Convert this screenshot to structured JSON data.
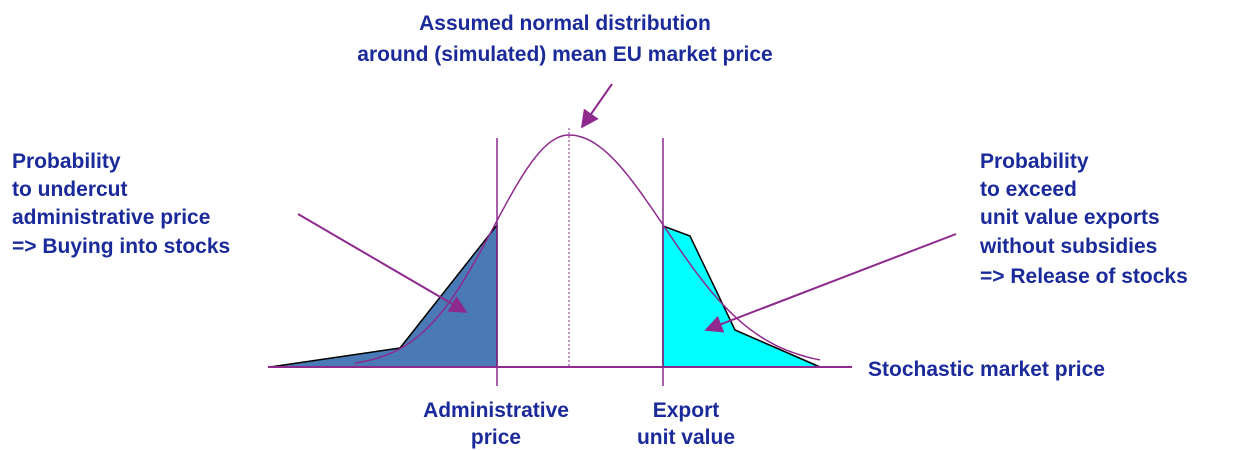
{
  "title": {
    "lines": [
      "Assumed normal distribution",
      "around (simulated) mean EU market price"
    ]
  },
  "left_note": {
    "lines": [
      "Probability",
      "to undercut",
      "administrative price",
      "=> Buying into stocks"
    ]
  },
  "right_note": {
    "lines": [
      "Probability",
      "to exceed",
      "unit value exports",
      "without subsidies",
      "=> Release of stocks"
    ]
  },
  "axis_label": "Stochastic market price",
  "administrative_price_label": {
    "lines": [
      "Administrative",
      "price"
    ]
  },
  "export_value_label": {
    "lines": [
      "Export",
      "unit value"
    ]
  }
}
